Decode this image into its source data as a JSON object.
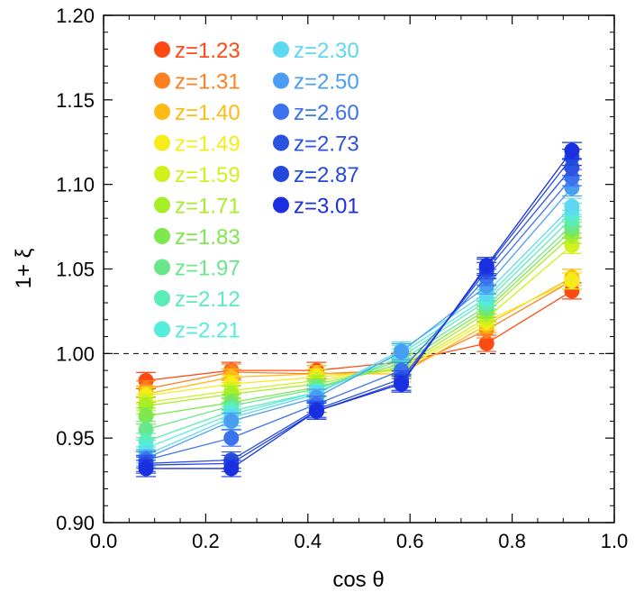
{
  "chart_data": {
    "type": "line",
    "xlabel": "cos θ",
    "ylabel": "1+ ξ",
    "xlim": [
      0.0,
      1.0
    ],
    "ylim": [
      0.9,
      1.2
    ],
    "x_ticks": [
      "0.0",
      "0.2",
      "0.4",
      "0.6",
      "0.8",
      "1.0"
    ],
    "y_ticks": [
      "0.90",
      "0.95",
      "1.00",
      "1.05",
      "1.10",
      "1.15",
      "1.20"
    ],
    "reference_line": 1.0,
    "x": [
      0.083,
      0.25,
      0.417,
      0.583,
      0.75,
      0.917
    ],
    "legend_placement": "top-left",
    "series": [
      {
        "name": "z=1.23",
        "color": "#ff4a14",
        "values": [
          0.984,
          0.99,
          0.99,
          0.995,
          1.006,
          1.037
        ]
      },
      {
        "name": "z=1.31",
        "color": "#ff8020",
        "values": [
          0.979,
          0.989,
          0.988,
          0.99,
          1.014,
          1.043
        ]
      },
      {
        "name": "z=1.40",
        "color": "#ffbb14",
        "values": [
          0.976,
          0.986,
          0.988,
          0.988,
          1.017,
          1.045
        ]
      },
      {
        "name": "z=1.49",
        "color": "#f5ec1a",
        "values": [
          0.975,
          0.982,
          0.986,
          0.99,
          1.019,
          1.043
        ]
      },
      {
        "name": "z=1.59",
        "color": "#d2f01e",
        "values": [
          0.971,
          0.978,
          0.984,
          0.991,
          1.021,
          1.064
        ]
      },
      {
        "name": "z=1.71",
        "color": "#a6ee28",
        "values": [
          0.969,
          0.976,
          0.982,
          0.992,
          1.024,
          1.07
        ]
      },
      {
        "name": "z=1.83",
        "color": "#7ee84c",
        "values": [
          0.963,
          0.971,
          0.98,
          0.994,
          1.026,
          1.073
        ]
      },
      {
        "name": "z=1.97",
        "color": "#68e88a",
        "values": [
          0.955,
          0.969,
          0.979,
          0.996,
          1.028,
          1.076
        ]
      },
      {
        "name": "z=2.12",
        "color": "#5cecb6",
        "values": [
          0.948,
          0.966,
          0.977,
          0.998,
          1.031,
          1.08
        ]
      },
      {
        "name": "z=2.21",
        "color": "#55ecdc",
        "values": [
          0.944,
          0.964,
          0.977,
          1.0,
          1.033,
          1.084
        ]
      },
      {
        "name": "z=2.30",
        "color": "#5cd8f0",
        "values": [
          0.94,
          0.962,
          0.976,
          1.002,
          1.036,
          1.087
        ]
      },
      {
        "name": "z=2.50",
        "color": "#4a9ef2",
        "values": [
          0.938,
          0.96,
          0.974,
          1.001,
          1.04,
          1.098
        ]
      },
      {
        "name": "z=2.60",
        "color": "#3c72ee",
        "values": [
          0.937,
          0.95,
          0.97,
          0.99,
          1.045,
          1.104
        ]
      },
      {
        "name": "z=2.73",
        "color": "#2c52e4",
        "values": [
          0.935,
          0.937,
          0.967,
          0.985,
          1.049,
          1.11
        ]
      },
      {
        "name": "z=2.87",
        "color": "#2448dc",
        "values": [
          0.934,
          0.935,
          0.966,
          0.983,
          1.051,
          1.116
        ]
      },
      {
        "name": "z=3.01",
        "color": "#1a30e0",
        "values": [
          0.932,
          0.932,
          0.966,
          0.982,
          1.052,
          1.12
        ]
      }
    ]
  }
}
